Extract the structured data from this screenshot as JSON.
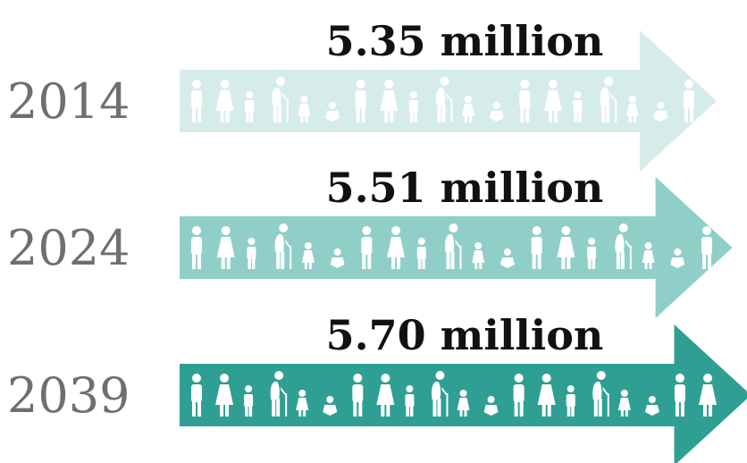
{
  "chart_data": {
    "type": "bar",
    "categories": [
      "2014",
      "2024",
      "2039"
    ],
    "values": [
      5.35,
      5.51,
      5.7
    ],
    "value_labels": [
      "5.35 million",
      "5.51 million",
      "5.70 million"
    ],
    "colors": [
      "#d6ecea",
      "#8fcfc7",
      "#2f9f93"
    ],
    "icon": "person-icon"
  }
}
